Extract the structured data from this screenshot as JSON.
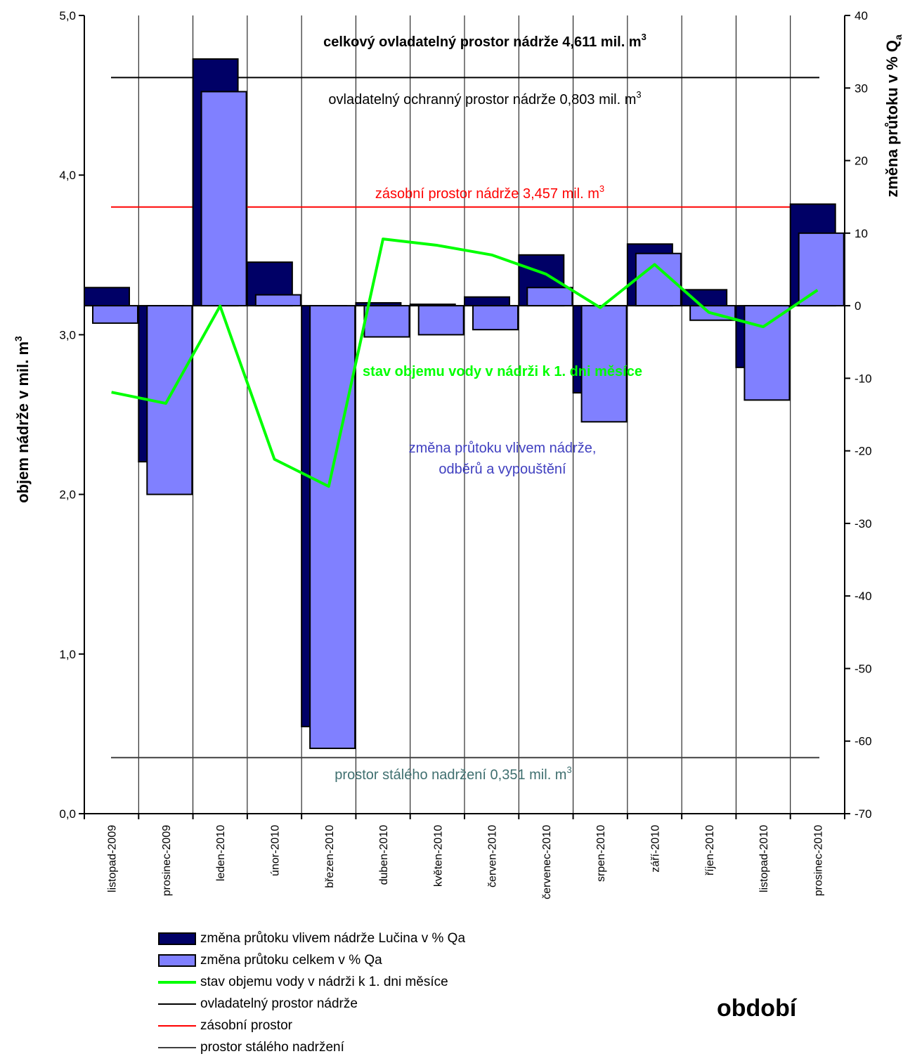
{
  "chart_data": {
    "type": "bar",
    "categories": [
      "listopad-2009",
      "prosinec-2009",
      "leden-2010",
      "únor-2010",
      "březen-2010",
      "duben-2010",
      "květen-2010",
      "červen-2010",
      "červenec-2010",
      "srpen-2010",
      "září-2010",
      "říjen-2010",
      "listopad-2010",
      "prosinec-2010"
    ],
    "ylabel": "objem nádrže  v mil. m",
    "ylabel_sup": "3",
    "y2label": "změna průtoku v % Q",
    "y2label_sub": "a",
    "xlabel": "období",
    "ylim": [
      0,
      5
    ],
    "y2lim": [
      -70,
      40
    ],
    "yticks": [
      "0,0",
      "1,0",
      "2,0",
      "3,0",
      "4,0",
      "5,0"
    ],
    "yticks_values": [
      0,
      1,
      2,
      3,
      4,
      5
    ],
    "y2ticks": [
      "-70",
      "-60",
      "-50",
      "-40",
      "-30",
      "-20",
      "-10",
      "0",
      "10",
      "20",
      "30",
      "40"
    ],
    "y2ticks_values": [
      -70,
      -60,
      -50,
      -40,
      -30,
      -20,
      -10,
      0,
      10,
      20,
      30,
      40
    ],
    "series": [
      {
        "name": "změna průtoku vlivem nádrže Lučina v % Qa",
        "axis": "right",
        "kind": "bar",
        "color": "#000066",
        "values": [
          2.5,
          -21.5,
          34,
          6,
          -58,
          0.4,
          0.2,
          1.2,
          7,
          -12,
          8.5,
          2.2,
          -8.5,
          14
        ]
      },
      {
        "name": "změna průtoku celkem v % Qa",
        "axis": "right",
        "kind": "bar",
        "color": "#8080ff",
        "values": [
          -2.4,
          -26,
          29.5,
          1.5,
          -61,
          -4.3,
          -4,
          -3.3,
          2.5,
          -16,
          7.2,
          -2,
          -13,
          10
        ]
      },
      {
        "name": "stav objemu vody v nádrži k 1. dni měsíce",
        "axis": "left",
        "kind": "line",
        "color": "#00ff00",
        "values": [
          2.64,
          2.57,
          3.18,
          2.22,
          2.05,
          3.6,
          3.56,
          3.5,
          3.38,
          3.17,
          3.44,
          3.14,
          3.05,
          3.28
        ]
      },
      {
        "name": "ovladatelný prostor nádrže",
        "axis": "left",
        "kind": "hline",
        "color": "#000000",
        "value": 4.611
      },
      {
        "name": "zásobní prostor",
        "axis": "left",
        "kind": "hline",
        "color": "#ff0000",
        "value": 3.8
      },
      {
        "name": "prostor stálého nadržení",
        "axis": "left",
        "kind": "hline",
        "color": "#404040",
        "value": 0.351
      }
    ],
    "annotations": [
      {
        "id": "total",
        "text": "celkový ovladatelný prostor nádrže 4,611 mil. m",
        "sup": "3",
        "color": "#000000",
        "bold": true
      },
      {
        "id": "protective",
        "text": "ovladatelný ochranný  prostor nádrže 0,803 mil. m",
        "sup": "3",
        "color": "#000000",
        "bold": false
      },
      {
        "id": "storage",
        "text": "zásobní prostor nádrže 3,457 mil. m",
        "sup": "3",
        "color": "#ff0000",
        "bold": false
      },
      {
        "id": "volume",
        "text": "stav objemu vody v  nádrži k 1. dni měsíce",
        "sup": "",
        "color": "#00ff00",
        "bold": true
      },
      {
        "id": "flow1",
        "text": "změna průtoku vlivem nádrže,",
        "sup": "",
        "color": "#4040c0",
        "bold": false
      },
      {
        "id": "flow2",
        "text": "odběrů a vypouštění",
        "sup": "",
        "color": "#4040c0",
        "bold": false
      },
      {
        "id": "dead",
        "text": "prostor stálého nadržení 0,351 mil. m",
        "sup": "3",
        "color": "#407070",
        "bold": false
      }
    ],
    "grid": "vertical category separators",
    "legend_position": "bottom-left"
  }
}
